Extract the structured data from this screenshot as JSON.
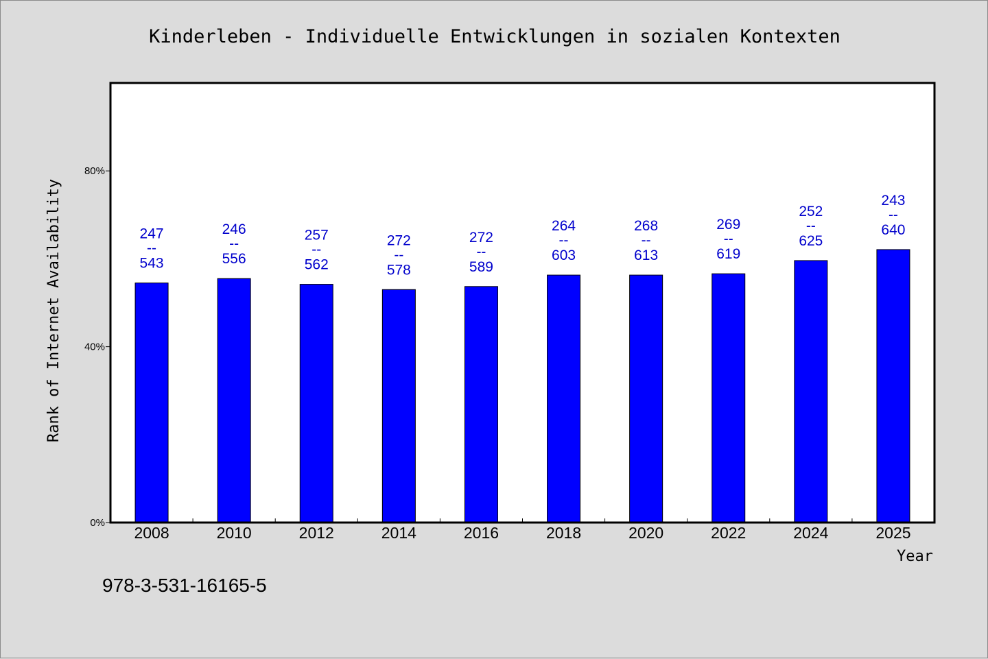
{
  "chart_data": {
    "type": "bar",
    "title": "Kinderleben - Individuelle Entwicklungen in sozialen Kontexten",
    "xlabel": "Year",
    "ylabel": "Rank of Internet Availability",
    "categories": [
      "2008",
      "2010",
      "2012",
      "2014",
      "2016",
      "2018",
      "2020",
      "2022",
      "2024",
      "2025"
    ],
    "values": [
      54.5,
      55.5,
      54.2,
      53.0,
      53.7,
      56.3,
      56.3,
      56.6,
      59.6,
      62.1
    ],
    "data_labels": [
      {
        "top": "247",
        "sep": "--",
        "bottom": "543"
      },
      {
        "top": "246",
        "sep": "--",
        "bottom": "556"
      },
      {
        "top": "257",
        "sep": "--",
        "bottom": "562"
      },
      {
        "top": "272",
        "sep": "--",
        "bottom": "578"
      },
      {
        "top": "272",
        "sep": "--",
        "bottom": "589"
      },
      {
        "top": "264",
        "sep": "--",
        "bottom": "603"
      },
      {
        "top": "268",
        "sep": "--",
        "bottom": "613"
      },
      {
        "top": "269",
        "sep": "--",
        "bottom": "619"
      },
      {
        "top": "252",
        "sep": "--",
        "bottom": "625"
      },
      {
        "top": "243",
        "sep": "--",
        "bottom": "640"
      }
    ],
    "yticks": [
      0,
      40,
      80
    ],
    "ytick_labels": [
      "0%",
      "40%",
      "80%"
    ],
    "ylim": [
      0,
      100
    ],
    "grid": false,
    "bar_color": "#0000ff",
    "label_color": "#0000cc"
  },
  "footer": {
    "isbn": "978-3-531-16165-5"
  }
}
